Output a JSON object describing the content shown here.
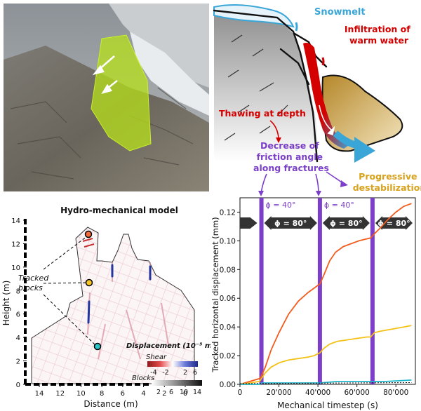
{
  "concept": {
    "snowmelt": "Snowmelt",
    "infiltration": "Infiltration of\nwarm water",
    "thawing": "Thawing at depth",
    "friction": "Decrease of\nfriction angle\nalong fractures",
    "destabilization": "Progressive\ndestabilization",
    "colors": {
      "snow": "#3aa6d8",
      "warm": "#d40000",
      "friction": "#7b3fc8",
      "destab": "#d8a21c"
    }
  },
  "model": {
    "title": "Hydro-mechanical model",
    "tracked_label": "Tracked\nblocks",
    "legend_title": "Displacement (10⁻⁵ mm)",
    "shear_label": "Shear",
    "shear_ticks": [
      "-4",
      "-2",
      "2",
      "6"
    ],
    "blocks_label": "Blocks",
    "blocks_ticks": [
      "2",
      "6",
      "10",
      "14"
    ],
    "xlabel": "Distance (m)",
    "ylabel": "Height (m)",
    "x_ticks": [
      "14",
      "12",
      "10",
      "8",
      "6",
      "4",
      "2",
      "0"
    ],
    "y_ticks": [
      "0",
      "2",
      "4",
      "6",
      "8",
      "10",
      "12",
      "14"
    ]
  },
  "chart_data": {
    "type": "line",
    "xlabel": "Mechanical timestep (s)",
    "ylabel": "Tracked horizontal displacement (mm)",
    "xlim": [
      0,
      90000
    ],
    "ylim": [
      0,
      0.13
    ],
    "x_ticks": [
      0,
      20000,
      40000,
      60000,
      80000
    ],
    "x_tick_labels": [
      "0",
      "20'000",
      "40'000",
      "60'000",
      "80'000"
    ],
    "y_ticks": [
      0,
      0.02,
      0.04,
      0.06,
      0.08,
      0.1,
      0.12
    ],
    "y_tick_labels": [
      "0.00",
      "0.02",
      "0.04",
      "0.06",
      "0.08",
      "0.10",
      "0.12"
    ],
    "vlines": [
      11000,
      41000,
      68000
    ],
    "phase_labels": [
      {
        "text": "ϕ = 40°",
        "x": 11000
      },
      {
        "text": "ϕ = 40°",
        "x": 41000
      }
    ],
    "arrow_labels": [
      {
        "text": "ϕ = 80°",
        "from": 11000,
        "to": 41000
      },
      {
        "text": "ϕ = 80°",
        "from": 41000,
        "to": 68000
      },
      {
        "text": "ϕ = 80°",
        "from": 68000,
        "to": 90000
      }
    ],
    "series": [
      {
        "color": "#f25c1e",
        "x": [
          0,
          5000,
          10000,
          11000,
          13000,
          16000,
          20000,
          25000,
          30000,
          35000,
          38000,
          41000,
          43000,
          46000,
          49000,
          53000,
          57000,
          61000,
          64000,
          67000,
          69000,
          72000,
          76000,
          80000,
          84000,
          88000
        ],
        "y": [
          0,
          0.002,
          0.004,
          0.006,
          0.012,
          0.024,
          0.036,
          0.049,
          0.058,
          0.064,
          0.067,
          0.07,
          0.076,
          0.086,
          0.092,
          0.096,
          0.098,
          0.1,
          0.101,
          0.102,
          0.105,
          0.109,
          0.115,
          0.12,
          0.124,
          0.126
        ]
      },
      {
        "color": "#f5c116",
        "x": [
          0,
          5000,
          10000,
          11000,
          13000,
          16000,
          20000,
          25000,
          30000,
          35000,
          38000,
          41000,
          43000,
          46000,
          50000,
          55000,
          60000,
          65000,
          67000,
          69000,
          72000,
          76000,
          80000,
          84000,
          88000
        ],
        "y": [
          0,
          0.001,
          0.002,
          0.004,
          0.008,
          0.012,
          0.015,
          0.017,
          0.018,
          0.019,
          0.02,
          0.022,
          0.025,
          0.028,
          0.03,
          0.031,
          0.032,
          0.033,
          0.033,
          0.036,
          0.037,
          0.038,
          0.039,
          0.04,
          0.041
        ]
      },
      {
        "color": "#21b5c9",
        "x": [
          0,
          10000,
          11000,
          20000,
          30000,
          41000,
          50000,
          60000,
          68000,
          75000,
          88000
        ],
        "y": [
          0,
          0,
          0.001,
          0.001,
          0.001,
          0.001,
          0.002,
          0.002,
          0.002,
          0.002,
          0.003
        ]
      },
      {
        "color": "#111111",
        "dash": true,
        "x": [
          0,
          88000
        ],
        "y": [
          0.0005,
          0.0012
        ]
      }
    ],
    "colors": {
      "vline": "#7b3fc8",
      "arrow": "#333333"
    }
  }
}
